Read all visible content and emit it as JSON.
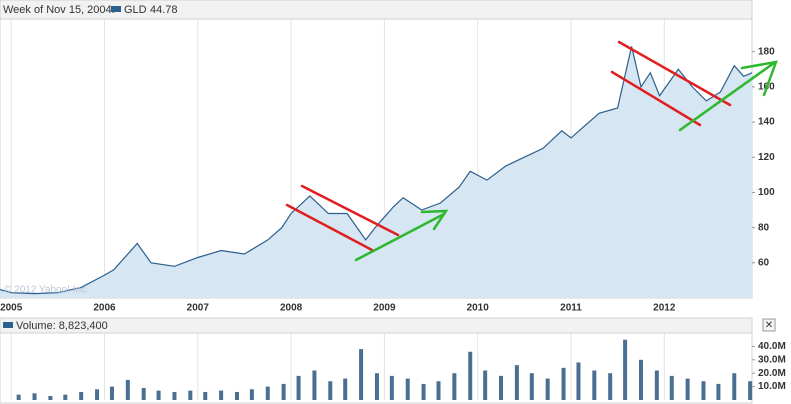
{
  "chart_data": [
    {
      "type": "area",
      "header": "Week of Nov 15, 2004:",
      "watermark": "© 2012 Yahoo! Inc.",
      "series": [
        {
          "name": "GLD",
          "color": "#2b5f8e",
          "fill": "#d6e6f3",
          "x": [
            2004.88,
            2005.0,
            2005.25,
            2005.5,
            2005.75,
            2006.0,
            2006.1,
            2006.35,
            2006.5,
            2006.75,
            2007.0,
            2007.25,
            2007.5,
            2007.75,
            2007.9,
            2008.0,
            2008.2,
            2008.4,
            2008.6,
            2008.8,
            2008.9,
            2009.1,
            2009.2,
            2009.4,
            2009.6,
            2009.8,
            2009.92,
            2010.1,
            2010.3,
            2010.5,
            2010.7,
            2010.9,
            2011.0,
            2011.3,
            2011.5,
            2011.65,
            2011.75,
            2011.85,
            2011.95,
            2012.15,
            2012.3,
            2012.45,
            2012.6,
            2012.75,
            2012.85,
            2012.94
          ],
          "values": [
            44.78,
            43,
            42.5,
            43,
            46,
            53,
            56,
            71,
            60,
            58,
            63,
            67,
            65,
            73,
            80,
            88,
            98,
            88,
            88,
            73,
            80,
            92,
            97,
            90,
            94,
            103,
            112,
            107,
            115,
            120,
            125,
            135,
            131,
            145,
            148,
            183,
            160,
            168,
            155,
            170,
            160,
            152,
            157,
            172,
            166,
            168
          ]
        }
      ],
      "xlim": [
        2004.88,
        2012.94
      ],
      "xticks": [
        2005,
        2006,
        2007,
        2008,
        2009,
        2010,
        2011,
        2012
      ],
      "ylim": [
        40,
        198
      ],
      "yticks": [
        60,
        80,
        100,
        120,
        140,
        160,
        180
      ],
      "grid": "x"
    },
    {
      "type": "bar",
      "header": "Volume: 8,823,400",
      "color": "#4a6f93",
      "x": [
        2005.08,
        2005.25,
        2005.42,
        2005.58,
        2005.75,
        2005.92,
        2006.08,
        2006.25,
        2006.42,
        2006.58,
        2006.75,
        2006.92,
        2007.08,
        2007.25,
        2007.42,
        2007.58,
        2007.75,
        2007.92,
        2008.08,
        2008.25,
        2008.42,
        2008.58,
        2008.75,
        2008.92,
        2009.08,
        2009.25,
        2009.42,
        2009.58,
        2009.75,
        2009.92,
        2010.08,
        2010.25,
        2010.42,
        2010.58,
        2010.75,
        2010.92,
        2011.08,
        2011.25,
        2011.42,
        2011.58,
        2011.75,
        2011.92,
        2012.08,
        2012.25,
        2012.42,
        2012.58,
        2012.75,
        2012.92
      ],
      "values": [
        4000000,
        5000000,
        3000000,
        4000000,
        6000000,
        8000000,
        10000000,
        15000000,
        9000000,
        7000000,
        6000000,
        7000000,
        6000000,
        7000000,
        6000000,
        8000000,
        10000000,
        12000000,
        18000000,
        22000000,
        14000000,
        16000000,
        38000000,
        20000000,
        18000000,
        16000000,
        12000000,
        14000000,
        20000000,
        36000000,
        22000000,
        18000000,
        26000000,
        20000000,
        16000000,
        24000000,
        28000000,
        22000000,
        20000000,
        45000000,
        30000000,
        22000000,
        18000000,
        16000000,
        14000000,
        12000000,
        20000000,
        14000000
      ],
      "xlim": [
        2004.88,
        2012.94
      ],
      "xticks": [
        2005,
        2006,
        2007,
        2008,
        2009,
        2010,
        2011,
        2012
      ],
      "ylim": [
        0,
        50000000
      ],
      "yticks": [
        {
          "value": 10000000,
          "label": "10.0M"
        },
        {
          "value": 20000000,
          "label": "20.0M"
        },
        {
          "value": 30000000,
          "label": "30.0M"
        },
        {
          "value": 40000000,
          "label": "40.0M"
        }
      ],
      "grid": "x"
    }
  ]
}
